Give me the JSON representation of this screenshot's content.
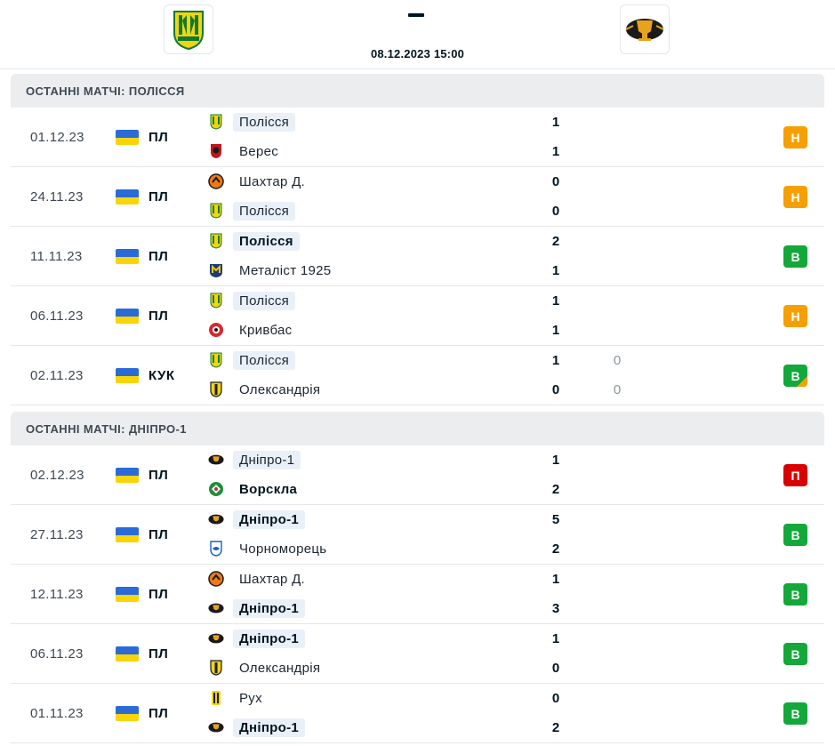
{
  "header": {
    "score_separator": "–",
    "datetime": "08.12.2023 15:00",
    "home_logo_icon": "polissia-crest-icon",
    "away_logo_icon": "dnipro1-crest-icon"
  },
  "colors": {
    "draw": "#f5a000",
    "win": "#13a83a",
    "loss": "#d90000",
    "ukraine_blue": "#2a6bd8",
    "ukraine_yellow": "#f9d406"
  },
  "sections": [
    {
      "title": "ОСТАННІ МАТЧІ: ПОЛІССЯ",
      "matches": [
        {
          "date": "01.12.23",
          "league": "ПЛ",
          "home": "Полісся",
          "away": "Верес",
          "home_score": "1",
          "away_score": "1",
          "result": "Н"
        },
        {
          "date": "24.11.23",
          "league": "ПЛ",
          "home": "Шахтар Д.",
          "away": "Полісся",
          "home_score": "0",
          "away_score": "0",
          "result": "Н"
        },
        {
          "date": "11.11.23",
          "league": "ПЛ",
          "home": "Полісся",
          "away": "Металіст 1925",
          "home_score": "2",
          "away_score": "1",
          "result": "В"
        },
        {
          "date": "06.11.23",
          "league": "ПЛ",
          "home": "Полісся",
          "away": "Кривбас",
          "home_score": "1",
          "away_score": "1",
          "result": "Н"
        },
        {
          "date": "02.11.23",
          "league": "КУК",
          "home": "Полісся",
          "away": "Олександрія",
          "home_score": "1",
          "away_score": "0",
          "home_pen": "0",
          "away_pen": "0",
          "result": "В"
        }
      ]
    },
    {
      "title": "ОСТАННІ МАТЧІ: ДНІПРО-1",
      "matches": [
        {
          "date": "02.12.23",
          "league": "ПЛ",
          "home": "Дніпро-1",
          "away": "Ворскла",
          "home_score": "1",
          "away_score": "2",
          "result": "П"
        },
        {
          "date": "27.11.23",
          "league": "ПЛ",
          "home": "Дніпро-1",
          "away": "Чорноморець",
          "home_score": "5",
          "away_score": "2",
          "result": "В"
        },
        {
          "date": "12.11.23",
          "league": "ПЛ",
          "home": "Шахтар Д.",
          "away": "Дніпро-1",
          "home_score": "1",
          "away_score": "3",
          "result": "В"
        },
        {
          "date": "06.11.23",
          "league": "ПЛ",
          "home": "Дніпро-1",
          "away": "Олександрія",
          "home_score": "1",
          "away_score": "0",
          "result": "В"
        },
        {
          "date": "01.11.23",
          "league": "ПЛ",
          "home": "Рух",
          "away": "Дніпро-1",
          "home_score": "0",
          "away_score": "2",
          "result": "В"
        }
      ]
    }
  ]
}
